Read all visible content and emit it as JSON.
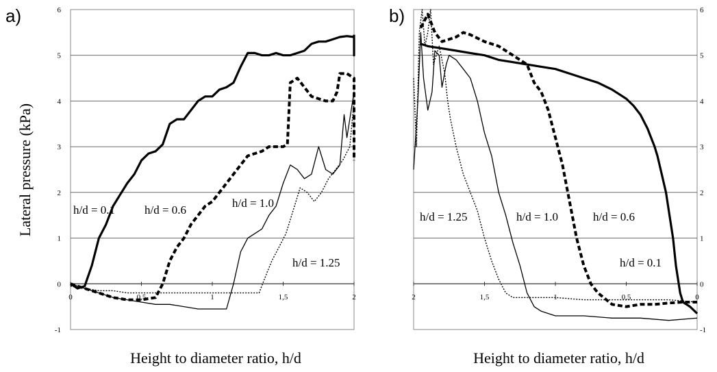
{
  "chart_data": [
    {
      "type": "line",
      "panel_label": "a)",
      "xlabel": "Height to diameter ratio, h/d",
      "ylabel": "Lateral pressure (kPa)",
      "xlim": [
        0,
        2
      ],
      "ylim": [
        -1,
        6
      ],
      "x_ticks": [
        0,
        0.5,
        1,
        1.5,
        2
      ],
      "x_tick_labels": [
        "0",
        "0,5",
        "1",
        "1,5",
        "2"
      ],
      "y_ticks": [
        -1,
        0,
        1,
        2,
        3,
        4,
        5,
        6
      ],
      "y_tick_labels": [
        "-1",
        "0",
        "1",
        "2",
        "3",
        "4",
        "5",
        "6"
      ],
      "grid": "horizontal",
      "annotations": [
        {
          "text": "h/d  = 0.1",
          "series": "0.1"
        },
        {
          "text": "h/d  = 0.6",
          "series": "0.6"
        },
        {
          "text": "h/d  = 1.0",
          "series": "1.0"
        },
        {
          "text": "h/d  = 1.25",
          "series": "1.25"
        }
      ],
      "series": [
        {
          "key": "0.1",
          "style": "thick-solid",
          "color": "#000000",
          "x": [
            0,
            0.05,
            0.1,
            0.15,
            0.2,
            0.25,
            0.3,
            0.35,
            0.4,
            0.45,
            0.5,
            0.55,
            0.6,
            0.65,
            0.7,
            0.75,
            0.8,
            0.85,
            0.9,
            0.95,
            1.0,
            1.05,
            1.1,
            1.15,
            1.2,
            1.25,
            1.3,
            1.35,
            1.4,
            1.45,
            1.5,
            1.55,
            1.6,
            1.65,
            1.7,
            1.75,
            1.8,
            1.85,
            1.9,
            1.95,
            2.0,
            2.0,
            2.0
          ],
          "y": [
            0,
            -0.1,
            -0.05,
            0.4,
            1.0,
            1.3,
            1.7,
            1.95,
            2.2,
            2.4,
            2.7,
            2.85,
            2.9,
            3.05,
            3.5,
            3.6,
            3.6,
            3.8,
            4.0,
            4.1,
            4.1,
            4.25,
            4.3,
            4.4,
            4.75,
            5.05,
            5.05,
            5.0,
            5.0,
            5.05,
            5.0,
            5.0,
            5.05,
            5.1,
            5.25,
            5.3,
            5.3,
            5.35,
            5.4,
            5.42,
            5.4,
            5.0,
            5.45
          ]
        },
        {
          "key": "0.6",
          "style": "thick-dashed",
          "color": "#000000",
          "x": [
            0,
            0.1,
            0.2,
            0.3,
            0.4,
            0.5,
            0.6,
            0.65,
            0.7,
            0.75,
            0.8,
            0.85,
            0.9,
            0.95,
            1.0,
            1.05,
            1.1,
            1.15,
            1.2,
            1.25,
            1.3,
            1.35,
            1.4,
            1.45,
            1.5,
            1.53,
            1.55,
            1.6,
            1.65,
            1.7,
            1.75,
            1.8,
            1.85,
            1.88,
            1.9,
            1.95,
            2.0,
            2.0
          ],
          "y": [
            0,
            -0.1,
            -0.2,
            -0.3,
            -0.35,
            -0.35,
            -0.3,
            0.0,
            0.5,
            0.8,
            1.0,
            1.3,
            1.5,
            1.7,
            1.8,
            2.0,
            2.2,
            2.4,
            2.6,
            2.8,
            2.85,
            2.9,
            3.0,
            3.0,
            3.0,
            3.05,
            4.4,
            4.5,
            4.3,
            4.1,
            4.05,
            4.0,
            4.0,
            4.2,
            4.6,
            4.6,
            4.5,
            2.7
          ]
        },
        {
          "key": "1.0",
          "style": "thin-solid",
          "color": "#000000",
          "x": [
            0,
            0.1,
            0.2,
            0.3,
            0.4,
            0.5,
            0.6,
            0.7,
            0.8,
            0.9,
            1.0,
            1.05,
            1.1,
            1.15,
            1.2,
            1.25,
            1.3,
            1.35,
            1.4,
            1.45,
            1.5,
            1.55,
            1.6,
            1.65,
            1.7,
            1.75,
            1.8,
            1.85,
            1.9,
            1.93,
            1.95,
            2.0
          ],
          "y": [
            0,
            -0.1,
            -0.2,
            -0.3,
            -0.35,
            -0.4,
            -0.45,
            -0.45,
            -0.5,
            -0.55,
            -0.55,
            -0.55,
            -0.55,
            0.0,
            0.7,
            1.0,
            1.1,
            1.2,
            1.5,
            1.7,
            2.2,
            2.6,
            2.5,
            2.3,
            2.4,
            3.0,
            2.5,
            2.4,
            2.6,
            3.7,
            3.2,
            4.2
          ]
        },
        {
          "key": "1.25",
          "style": "thin-dotted",
          "color": "#000000",
          "x": [
            0,
            0.1,
            0.2,
            0.3,
            0.4,
            0.5,
            0.6,
            0.7,
            0.8,
            0.9,
            1.0,
            1.1,
            1.2,
            1.3,
            1.33,
            1.38,
            1.42,
            1.47,
            1.52,
            1.57,
            1.62,
            1.67,
            1.72,
            1.77,
            1.82,
            1.87,
            1.92,
            1.97,
            2.0
          ],
          "y": [
            -0.05,
            -0.1,
            -0.15,
            -0.15,
            -0.2,
            -0.2,
            -0.2,
            -0.2,
            -0.2,
            -0.2,
            -0.2,
            -0.2,
            -0.2,
            -0.2,
            -0.2,
            0.2,
            0.5,
            0.8,
            1.1,
            1.6,
            2.1,
            2.0,
            1.8,
            2.0,
            2.3,
            2.5,
            2.7,
            3.0,
            4.0
          ]
        }
      ]
    },
    {
      "type": "line",
      "panel_label": "b)",
      "xlabel": "Height to diameter ratio, h/d",
      "ylabel": "",
      "xlim": [
        2,
        0
      ],
      "ylim": [
        -1,
        6
      ],
      "x_ticks": [
        2,
        1.5,
        1,
        0.5,
        0
      ],
      "x_tick_labels": [
        "2",
        "1,5",
        "1",
        "0,5",
        "0"
      ],
      "y_ticks": [
        -1,
        0,
        1,
        2,
        3,
        4,
        5,
        6
      ],
      "y_tick_labels": [
        "-1",
        "0",
        "1",
        "2",
        "3",
        "4",
        "5",
        "6"
      ],
      "grid": "horizontal",
      "annotations": [
        {
          "text": "h/d  = 1.25",
          "series": "1.25"
        },
        {
          "text": "h/d  = 1.0",
          "series": "1.0"
        },
        {
          "text": "h/d  = 0.6",
          "series": "0.6"
        },
        {
          "text": "h/d  = 0.1",
          "series": "0.1"
        }
      ],
      "series": [
        {
          "key": "0.1",
          "style": "thick-solid",
          "color": "#000000",
          "x": [
            1.95,
            1.9,
            1.8,
            1.7,
            1.6,
            1.5,
            1.4,
            1.3,
            1.2,
            1.1,
            1.0,
            0.9,
            0.8,
            0.7,
            0.6,
            0.5,
            0.45,
            0.4,
            0.35,
            0.3,
            0.28,
            0.25,
            0.22,
            0.2,
            0.17,
            0.15,
            0.12,
            0.1,
            0.05,
            0.0
          ],
          "y": [
            5.25,
            5.2,
            5.15,
            5.1,
            5.05,
            5.0,
            4.9,
            4.85,
            4.8,
            4.75,
            4.7,
            4.6,
            4.5,
            4.4,
            4.25,
            4.05,
            3.9,
            3.7,
            3.4,
            3.0,
            2.8,
            2.4,
            2.0,
            1.6,
            1.0,
            0.4,
            -0.2,
            -0.4,
            -0.5,
            -0.65
          ]
        },
        {
          "key": "0.6",
          "style": "thick-dashed",
          "color": "#000000",
          "x": [
            1.95,
            1.9,
            1.85,
            1.8,
            1.75,
            1.7,
            1.65,
            1.6,
            1.5,
            1.4,
            1.3,
            1.2,
            1.15,
            1.1,
            1.05,
            1.0,
            0.95,
            0.9,
            0.85,
            0.8,
            0.75,
            0.7,
            0.6,
            0.5,
            0.4,
            0.3,
            0.2,
            0.1,
            0.0
          ],
          "y": [
            5.6,
            5.9,
            5.5,
            5.3,
            5.35,
            5.4,
            5.5,
            5.45,
            5.3,
            5.2,
            5.0,
            4.8,
            4.4,
            4.2,
            3.8,
            3.2,
            2.6,
            1.8,
            1.0,
            0.4,
            0.0,
            -0.2,
            -0.45,
            -0.5,
            -0.45,
            -0.45,
            -0.42,
            -0.4,
            -0.4
          ]
        },
        {
          "key": "1.0",
          "style": "thin-solid",
          "color": "#000000",
          "x": [
            2.0,
            1.97,
            1.95,
            1.93,
            1.9,
            1.87,
            1.85,
            1.82,
            1.8,
            1.77,
            1.75,
            1.7,
            1.65,
            1.6,
            1.55,
            1.5,
            1.45,
            1.4,
            1.35,
            1.3,
            1.25,
            1.2,
            1.15,
            1.1,
            1.0,
            0.8,
            0.6,
            0.4,
            0.2,
            0.0
          ],
          "y": [
            2.5,
            4.0,
            5.5,
            4.5,
            3.8,
            4.2,
            5.1,
            5.0,
            4.3,
            4.8,
            5.0,
            4.9,
            4.7,
            4.5,
            4.0,
            3.3,
            2.8,
            2.0,
            1.5,
            0.9,
            0.4,
            -0.2,
            -0.5,
            -0.6,
            -0.7,
            -0.7,
            -0.75,
            -0.75,
            -0.8,
            -0.75
          ]
        },
        {
          "key": "1.25",
          "style": "thin-dotted",
          "color": "#000000",
          "x": [
            2.0,
            1.98,
            1.96,
            1.94,
            1.92,
            1.9,
            1.88,
            1.86,
            1.84,
            1.82,
            1.8,
            1.78,
            1.76,
            1.74,
            1.7,
            1.65,
            1.6,
            1.55,
            1.5,
            1.45,
            1.4,
            1.35,
            1.3,
            1.25,
            1.2,
            1.0,
            0.8,
            0.6,
            0.4,
            0.2,
            0.0
          ],
          "y": [
            4.5,
            3.0,
            5.5,
            6.0,
            5.2,
            5.5,
            6.0,
            4.8,
            5.0,
            5.2,
            4.9,
            4.6,
            4.0,
            3.6,
            3.0,
            2.4,
            2.0,
            1.6,
            1.0,
            0.5,
            0.1,
            -0.2,
            -0.3,
            -0.3,
            -0.3,
            -0.3,
            -0.35,
            -0.35,
            -0.35,
            -0.35,
            -0.4
          ]
        }
      ]
    }
  ]
}
